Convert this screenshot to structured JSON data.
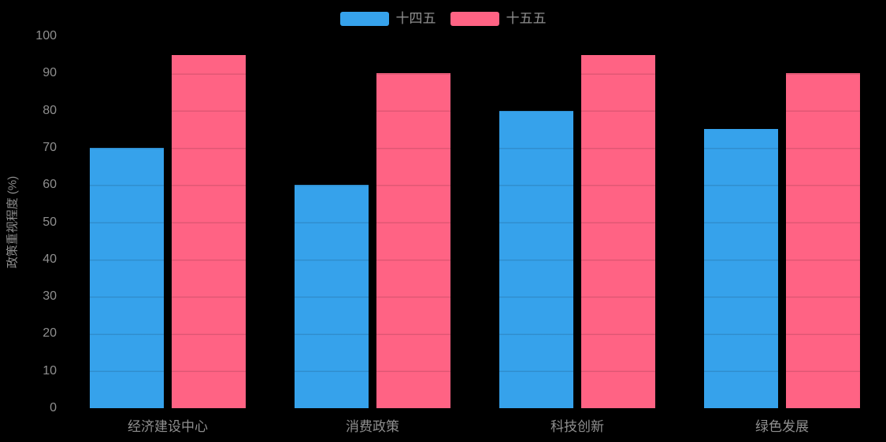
{
  "chart_data": {
    "type": "bar",
    "title": "",
    "categories": [
      "经济建设中心",
      "消费政策",
      "科技创新",
      "绿色发展"
    ],
    "series": [
      {
        "name": "十四五",
        "color": "#36A2EB",
        "values": [
          70,
          60,
          80,
          75
        ]
      },
      {
        "name": "十五五",
        "color": "#FF6384",
        "values": [
          95,
          90,
          95,
          90
        ]
      }
    ],
    "xlabel": "",
    "ylabel": "政策重视程度 (%)",
    "ylim": [
      0,
      100
    ],
    "yticks": [
      0,
      10,
      20,
      30,
      40,
      50,
      60,
      70,
      80,
      90,
      100
    ],
    "legend_position": "top-center",
    "grid": "horizontal lines every 10 units, visible only as darker bands over the bars",
    "background_color": "#000000",
    "text_color": "#8f8f8f"
  }
}
